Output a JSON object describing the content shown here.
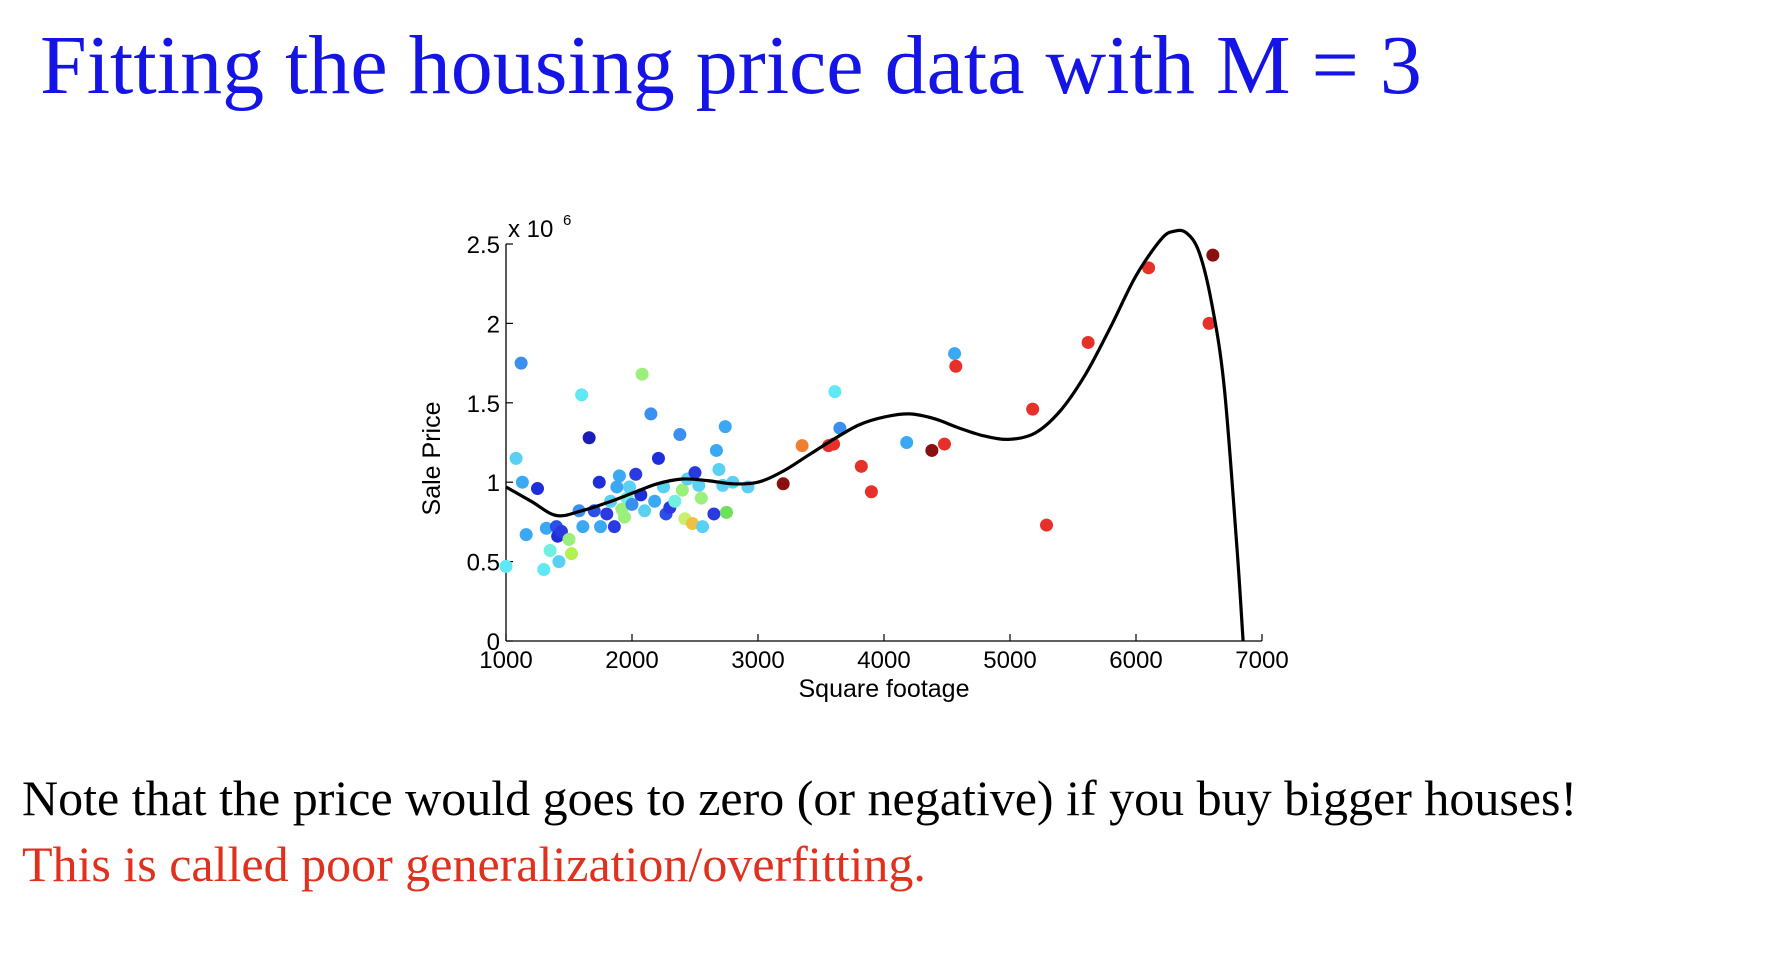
{
  "slide": {
    "title": "Fitting the housing price data with M = 3",
    "note": "Note that the price would goes to zero (or negative) if you buy bigger houses!",
    "conclusion": "This is called poor generalization/overfitting."
  },
  "colors": {
    "title": "#1414e6",
    "conclusion": "#e0301e",
    "fit_curve": "#000000"
  },
  "chart_data": {
    "type": "scatter",
    "title": "",
    "xlabel": "Square footage",
    "ylabel": "Sale Price",
    "y_multiplier_label": "x 10",
    "y_multiplier_exp": "6",
    "xlim": [
      1000,
      7000
    ],
    "ylim": [
      0,
      2.5
    ],
    "xticks": [
      1000,
      2000,
      3000,
      4000,
      5000,
      6000,
      7000
    ],
    "yticks": [
      0,
      0.5,
      1,
      1.5,
      2,
      2.5
    ],
    "ytick_labels": [
      "0",
      "0.5",
      "1",
      "1.5",
      "2",
      "2.5"
    ],
    "grid": false,
    "points": [
      {
        "x": 1000,
        "y": 0.47,
        "c": "#5fe8f5"
      },
      {
        "x": 1080,
        "y": 1.15,
        "c": "#5ad0f2"
      },
      {
        "x": 1120,
        "y": 1.75,
        "c": "#3a8ff0"
      },
      {
        "x": 1130,
        "y": 1.0,
        "c": "#3aa8f2"
      },
      {
        "x": 1160,
        "y": 0.67,
        "c": "#3aa8f2"
      },
      {
        "x": 1250,
        "y": 0.96,
        "c": "#1c2fd8"
      },
      {
        "x": 1300,
        "y": 0.45,
        "c": "#5fe8f5"
      },
      {
        "x": 1320,
        "y": 0.71,
        "c": "#3aa8f2"
      },
      {
        "x": 1350,
        "y": 0.57,
        "c": "#6ff0e0"
      },
      {
        "x": 1400,
        "y": 0.72,
        "c": "#2a50e8"
      },
      {
        "x": 1410,
        "y": 0.66,
        "c": "#1c2fd8"
      },
      {
        "x": 1420,
        "y": 0.5,
        "c": "#5ad0f2"
      },
      {
        "x": 1440,
        "y": 0.69,
        "c": "#2a3ae0"
      },
      {
        "x": 1500,
        "y": 0.64,
        "c": "#9af07a"
      },
      {
        "x": 1520,
        "y": 0.55,
        "c": "#b4f050"
      },
      {
        "x": 1580,
        "y": 0.82,
        "c": "#3a8ff0"
      },
      {
        "x": 1600,
        "y": 1.55,
        "c": "#5fe8f5"
      },
      {
        "x": 1610,
        "y": 0.72,
        "c": "#3aa8f2"
      },
      {
        "x": 1660,
        "y": 1.28,
        "c": "#1c1cb8"
      },
      {
        "x": 1700,
        "y": 0.82,
        "c": "#2a50e8"
      },
      {
        "x": 1740,
        "y": 1.0,
        "c": "#1c2fd8"
      },
      {
        "x": 1750,
        "y": 0.72,
        "c": "#3aa8f2"
      },
      {
        "x": 1800,
        "y": 0.8,
        "c": "#2a3ae0"
      },
      {
        "x": 1830,
        "y": 0.88,
        "c": "#5ad0f2"
      },
      {
        "x": 1860,
        "y": 0.72,
        "c": "#2a3ae0"
      },
      {
        "x": 1880,
        "y": 0.97,
        "c": "#3aa8f2"
      },
      {
        "x": 1900,
        "y": 1.04,
        "c": "#3aa8f2"
      },
      {
        "x": 1920,
        "y": 0.83,
        "c": "#9af07a"
      },
      {
        "x": 1940,
        "y": 0.78,
        "c": "#9af07a"
      },
      {
        "x": 1960,
        "y": 0.9,
        "c": "#6ff0e0"
      },
      {
        "x": 1980,
        "y": 0.97,
        "c": "#5ad0f2"
      },
      {
        "x": 2000,
        "y": 0.86,
        "c": "#3a8ff0"
      },
      {
        "x": 2030,
        "y": 1.05,
        "c": "#2a3ae0"
      },
      {
        "x": 2070,
        "y": 0.92,
        "c": "#1c2fd8"
      },
      {
        "x": 2080,
        "y": 1.68,
        "c": "#9af07a"
      },
      {
        "x": 2100,
        "y": 0.82,
        "c": "#5ad0f2"
      },
      {
        "x": 2150,
        "y": 1.43,
        "c": "#3a8ff0"
      },
      {
        "x": 2180,
        "y": 0.88,
        "c": "#3aa8f2"
      },
      {
        "x": 2210,
        "y": 1.15,
        "c": "#1c2fd8"
      },
      {
        "x": 2250,
        "y": 0.97,
        "c": "#5ad0f2"
      },
      {
        "x": 2270,
        "y": 0.8,
        "c": "#2a50e8"
      },
      {
        "x": 2300,
        "y": 0.84,
        "c": "#2a3ae0"
      },
      {
        "x": 2340,
        "y": 0.88,
        "c": "#6ff0e0"
      },
      {
        "x": 2380,
        "y": 1.3,
        "c": "#3a8ff0"
      },
      {
        "x": 2400,
        "y": 0.95,
        "c": "#9af07a"
      },
      {
        "x": 2420,
        "y": 0.77,
        "c": "#c8f070"
      },
      {
        "x": 2440,
        "y": 1.02,
        "c": "#5ad0f2"
      },
      {
        "x": 2480,
        "y": 0.74,
        "c": "#f0c040"
      },
      {
        "x": 2500,
        "y": 1.06,
        "c": "#2a3ae0"
      },
      {
        "x": 2530,
        "y": 0.98,
        "c": "#5ad0f2"
      },
      {
        "x": 2550,
        "y": 0.9,
        "c": "#9af07a"
      },
      {
        "x": 2560,
        "y": 0.72,
        "c": "#5ad0f2"
      },
      {
        "x": 2650,
        "y": 0.8,
        "c": "#2a3ae0"
      },
      {
        "x": 2670,
        "y": 1.2,
        "c": "#3aa8f2"
      },
      {
        "x": 2690,
        "y": 1.08,
        "c": "#5ad0f2"
      },
      {
        "x": 2720,
        "y": 0.98,
        "c": "#5ad0f2"
      },
      {
        "x": 2740,
        "y": 1.35,
        "c": "#3aa8f2"
      },
      {
        "x": 2750,
        "y": 0.81,
        "c": "#6fe05a"
      },
      {
        "x": 2800,
        "y": 1.0,
        "c": "#5ad0f2"
      },
      {
        "x": 2920,
        "y": 0.97,
        "c": "#5ad0f2"
      },
      {
        "x": 3200,
        "y": 0.99,
        "c": "#8a1010"
      },
      {
        "x": 3350,
        "y": 1.23,
        "c": "#f08030"
      },
      {
        "x": 3560,
        "y": 1.23,
        "c": "#e8302a"
      },
      {
        "x": 3600,
        "y": 1.24,
        "c": "#e8302a"
      },
      {
        "x": 3610,
        "y": 1.57,
        "c": "#5fe8f5"
      },
      {
        "x": 3650,
        "y": 1.34,
        "c": "#3a8ff0"
      },
      {
        "x": 3820,
        "y": 1.1,
        "c": "#e8302a"
      },
      {
        "x": 3900,
        "y": 0.94,
        "c": "#e8302a"
      },
      {
        "x": 4180,
        "y": 1.25,
        "c": "#3aa8f2"
      },
      {
        "x": 4380,
        "y": 1.2,
        "c": "#8a1010"
      },
      {
        "x": 4480,
        "y": 1.24,
        "c": "#e8302a"
      },
      {
        "x": 4560,
        "y": 1.81,
        "c": "#3aa8f2"
      },
      {
        "x": 4570,
        "y": 1.73,
        "c": "#e8302a"
      },
      {
        "x": 5180,
        "y": 1.46,
        "c": "#e8302a"
      },
      {
        "x": 5290,
        "y": 0.73,
        "c": "#e8302a"
      },
      {
        "x": 5620,
        "y": 1.88,
        "c": "#e8302a"
      },
      {
        "x": 6100,
        "y": 2.35,
        "c": "#e8302a"
      },
      {
        "x": 6580,
        "y": 2.0,
        "c": "#e8302a"
      },
      {
        "x": 6610,
        "y": 2.43,
        "c": "#8a1010"
      }
    ],
    "fit_curve": {
      "name": "",
      "x": [
        1000,
        1200,
        1400,
        1600,
        1800,
        2000,
        2200,
        2400,
        2600,
        2800,
        3000,
        3200,
        3400,
        3600,
        3800,
        4000,
        4200,
        4400,
        4600,
        4800,
        5000,
        5200,
        5400,
        5600,
        5800,
        6000,
        6200,
        6300,
        6400,
        6500,
        6600,
        6700,
        6800,
        6850
      ],
      "y": [
        0.97,
        0.88,
        0.79,
        0.82,
        0.87,
        0.93,
        0.99,
        1.02,
        1.01,
        0.99,
        1.0,
        1.07,
        1.17,
        1.27,
        1.36,
        1.41,
        1.43,
        1.4,
        1.34,
        1.29,
        1.27,
        1.31,
        1.45,
        1.68,
        1.98,
        2.3,
        2.53,
        2.58,
        2.57,
        2.45,
        2.13,
        1.6,
        0.6,
        0.0
      ]
    }
  }
}
